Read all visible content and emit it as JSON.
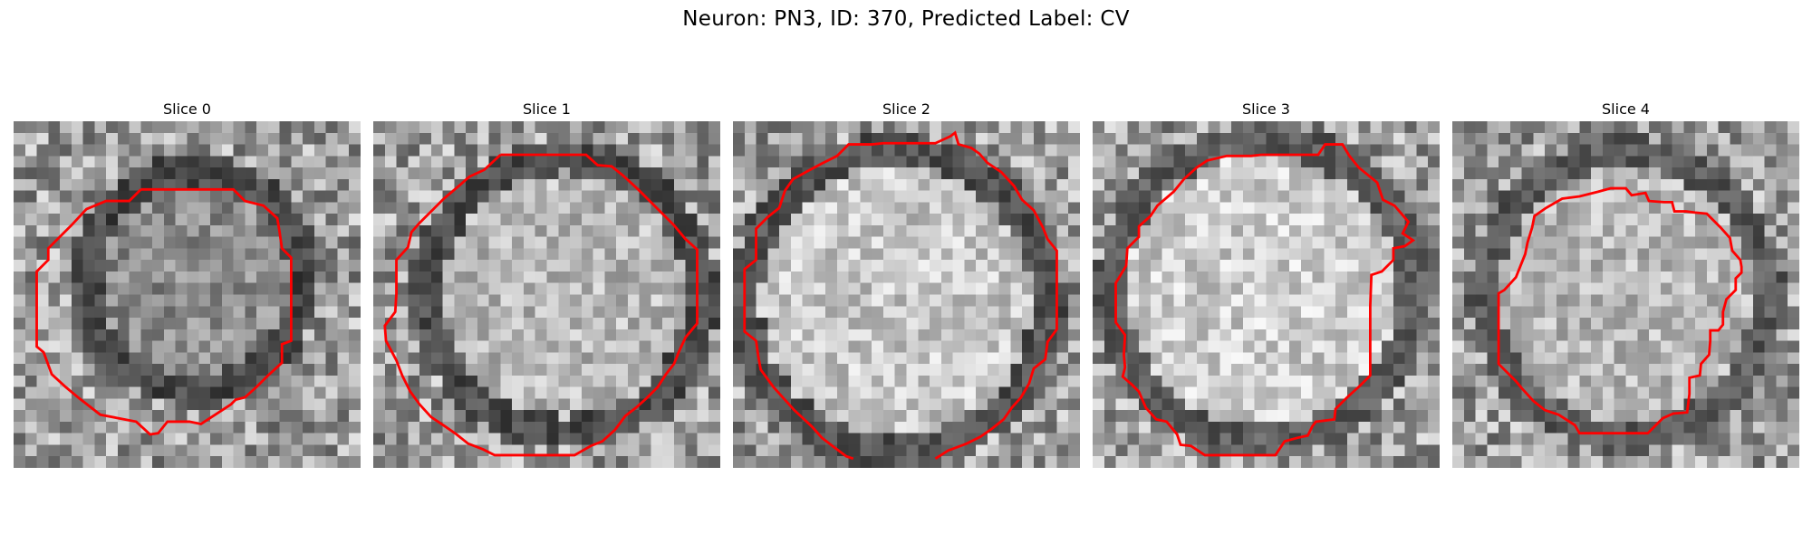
{
  "figure": {
    "title": "Neuron: PN3, ID: 370, Predicted Label: CV"
  },
  "outline_color": "#ff0000",
  "panels": [
    {
      "title": "Slice 0",
      "seed": 11,
      "ring_center": [
        0.52,
        0.46
      ],
      "ring_radius": 0.31,
      "ring_darkness": 0.28,
      "interior_brightness": 0.55
    },
    {
      "title": "Slice 1",
      "seed": 23,
      "ring_center": [
        0.55,
        0.5
      ],
      "ring_radius": 0.39,
      "ring_darkness": 0.3,
      "interior_brightness": 0.72
    },
    {
      "title": "Slice 2",
      "seed": 37,
      "ring_center": [
        0.47,
        0.52
      ],
      "ring_radius": 0.43,
      "ring_darkness": 0.32,
      "interior_brightness": 0.78
    },
    {
      "title": "Slice 3",
      "seed": 41,
      "ring_center": [
        0.49,
        0.49
      ],
      "ring_radius": 0.43,
      "ring_darkness": 0.36,
      "interior_brightness": 0.8
    },
    {
      "title": "Slice 4",
      "seed": 53,
      "ring_center": [
        0.5,
        0.5
      ],
      "ring_radius": 0.4,
      "ring_darkness": 0.35,
      "interior_brightness": 0.72
    }
  ]
}
